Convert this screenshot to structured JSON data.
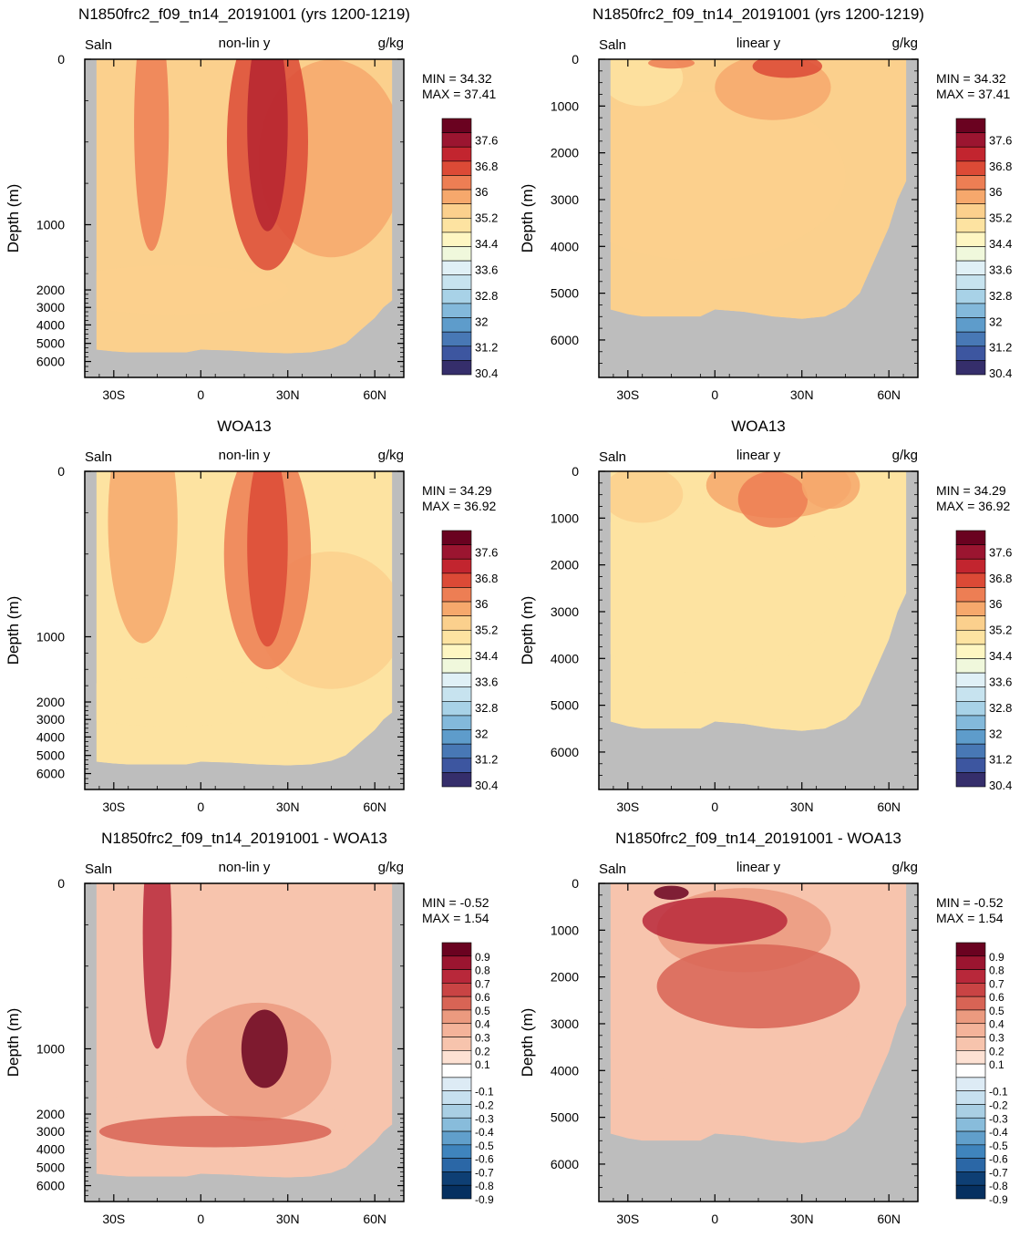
{
  "chart_data": [
    {
      "type": "heatmap",
      "title": "N1850frc2_f09_tn14_20191001 (yrs 1200-1219)",
      "left_label": "Saln",
      "center_label": "non-lin y",
      "right_label": "g/kg",
      "ylabel": "Depth (m)",
      "y_scale": "non-linear",
      "y_ticks": [
        "0",
        "1000",
        "2000",
        "3000",
        "4000",
        "5000",
        "6000"
      ],
      "x_ticks": [
        "30S",
        "0",
        "30N",
        "60N"
      ],
      "min_text": "MIN =  34.32",
      "max_text": "MAX =  37.41",
      "colorbar_levels": [
        "37.6",
        "36.8",
        "36",
        "35.2",
        "34.4",
        "33.6",
        "32.8",
        "32",
        "31.2",
        "30.4"
      ],
      "palette": "salinity",
      "fill_colors": [
        "#fbd08d",
        "#f6a86c",
        "#ed7e54",
        "#dc4a36",
        "#b52430"
      ]
    },
    {
      "type": "heatmap",
      "title": "N1850frc2_f09_tn14_20191001 (yrs 1200-1219)",
      "left_label": "Saln",
      "center_label": "linear y",
      "right_label": "g/kg",
      "ylabel": "Depth (m)",
      "y_scale": "linear",
      "y_ticks": [
        "0",
        "1000",
        "2000",
        "3000",
        "4000",
        "5000",
        "6000"
      ],
      "x_ticks": [
        "30S",
        "0",
        "30N",
        "60N"
      ],
      "min_text": "MIN =  34.32",
      "max_text": "MAX =  37.41",
      "colorbar_levels": [
        "37.6",
        "36.8",
        "36",
        "35.2",
        "34.4",
        "33.6",
        "32.8",
        "32",
        "31.2",
        "30.4"
      ],
      "palette": "salinity",
      "fill_colors": [
        "#fbd08d",
        "#fde3a1",
        "#f6a86c",
        "#ed7e54",
        "#dc4a36"
      ]
    },
    {
      "type": "heatmap",
      "title": "WOA13",
      "left_label": "Saln",
      "center_label": "non-lin y",
      "right_label": "g/kg",
      "ylabel": "Depth (m)",
      "y_scale": "non-linear",
      "y_ticks": [
        "0",
        "1000",
        "2000",
        "3000",
        "4000",
        "5000",
        "6000"
      ],
      "x_ticks": [
        "30S",
        "0",
        "30N",
        "60N"
      ],
      "min_text": "MIN =  34.29",
      "max_text": "MAX =  36.92",
      "colorbar_levels": [
        "37.6",
        "36.8",
        "36",
        "35.2",
        "34.4",
        "33.6",
        "32.8",
        "32",
        "31.2",
        "30.4"
      ],
      "palette": "salinity",
      "fill_colors": [
        "#fde3a1",
        "#fbd08d",
        "#f6a86c",
        "#ed7e54",
        "#dc4a36"
      ]
    },
    {
      "type": "heatmap",
      "title": "WOA13",
      "left_label": "Saln",
      "center_label": "linear y",
      "right_label": "g/kg",
      "ylabel": "Depth (m)",
      "y_scale": "linear",
      "y_ticks": [
        "0",
        "1000",
        "2000",
        "3000",
        "4000",
        "5000",
        "6000"
      ],
      "x_ticks": [
        "30S",
        "0",
        "30N",
        "60N"
      ],
      "min_text": "MIN =  34.29",
      "max_text": "MAX =  36.92",
      "colorbar_levels": [
        "37.6",
        "36.8",
        "36",
        "35.2",
        "34.4",
        "33.6",
        "32.8",
        "32",
        "31.2",
        "30.4"
      ],
      "palette": "salinity",
      "fill_colors": [
        "#fde3a1",
        "#fbd08d",
        "#f6a86c",
        "#ed7e54",
        "#f6a86c"
      ]
    },
    {
      "type": "heatmap",
      "title": "N1850frc2_f09_tn14_20191001 - WOA13",
      "left_label": "Saln",
      "center_label": "non-lin y",
      "right_label": "g/kg",
      "ylabel": "Depth (m)",
      "y_scale": "non-linear",
      "y_ticks": [
        "0",
        "1000",
        "2000",
        "3000",
        "4000",
        "5000",
        "6000"
      ],
      "x_ticks": [
        "30S",
        "0",
        "30N",
        "60N"
      ],
      "min_text": "MIN =  -0.52",
      "max_text": "MAX =   1.54",
      "colorbar_levels": [
        "0.9",
        "0.8",
        "0.7",
        "0.6",
        "0.5",
        "0.4",
        "0.3",
        "0.2",
        "0.1",
        "-0.1",
        "-0.2",
        "-0.3",
        "-0.4",
        "-0.5",
        "-0.6",
        "-0.7",
        "-0.8",
        "-0.9"
      ],
      "palette": "difference",
      "fill_colors": [
        "#f7c4ad",
        "#eb9a7f",
        "#d86455",
        "#b8283a",
        "#6a0220"
      ]
    },
    {
      "type": "heatmap",
      "title": "N1850frc2_f09_tn14_20191001 - WOA13",
      "left_label": "Saln",
      "center_label": "linear y",
      "right_label": "g/kg",
      "ylabel": "Depth (m)",
      "y_scale": "linear",
      "y_ticks": [
        "0",
        "1000",
        "2000",
        "3000",
        "4000",
        "5000",
        "6000"
      ],
      "x_ticks": [
        "30S",
        "0",
        "30N",
        "60N"
      ],
      "min_text": "MIN =  -0.52",
      "max_text": "MAX =   1.54",
      "colorbar_levels": [
        "0.9",
        "0.8",
        "0.7",
        "0.6",
        "0.5",
        "0.4",
        "0.3",
        "0.2",
        "0.1",
        "-0.1",
        "-0.2",
        "-0.3",
        "-0.4",
        "-0.5",
        "-0.6",
        "-0.7",
        "-0.8",
        "-0.9"
      ],
      "palette": "difference",
      "fill_colors": [
        "#f7c4ad",
        "#eb9a7f",
        "#d86455",
        "#b8283a",
        "#6a0220"
      ]
    }
  ],
  "palettes": {
    "salinity": [
      "#6a0220",
      "#9b1530",
      "#c2252f",
      "#dc4a36",
      "#ed7e54",
      "#f6a86c",
      "#fbd08d",
      "#fde3a1",
      "#fef6c2",
      "#f0f8dc",
      "#e0f0f6",
      "#c7e3ef",
      "#a8d2e7",
      "#83b9db",
      "#5e9ccb",
      "#4878b5",
      "#3d56a0",
      "#352e6b"
    ],
    "difference": [
      "#6a0220",
      "#9b1530",
      "#b8283a",
      "#c94444",
      "#d86455",
      "#eb9a7f",
      "#f4b39a",
      "#f7c4ad",
      "#fde1d3",
      "#ffffff",
      "#ddebf5",
      "#c7e0ef",
      "#a9cfe4",
      "#88bcdb",
      "#619fcb",
      "#3f84bd",
      "#2b67a6",
      "#0e3f74",
      "#063060"
    ]
  },
  "land_color": "#bdbdbd"
}
